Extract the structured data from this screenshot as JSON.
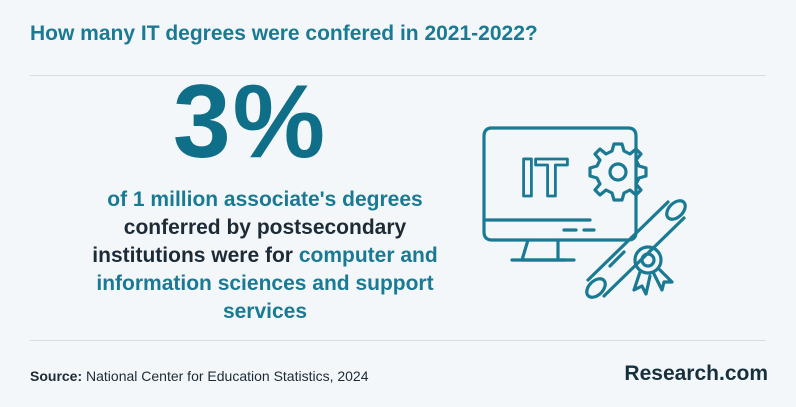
{
  "title": "How many IT degrees were confered in 2021-2022?",
  "stat": "3%",
  "description": {
    "part1": "of 1 million associate's degrees",
    "part2": "conferred by postsecondary institutions were for",
    "part3": "computer and information sciences and support services"
  },
  "illustration": {
    "screen_text": "IT",
    "icons": [
      "monitor-icon",
      "gear-icon",
      "diploma-icon"
    ]
  },
  "source": {
    "label": "Source:",
    "text": "National Center for Education Statistics, 2024"
  },
  "brand": "Research.com",
  "colors": {
    "accent": "#1a7a94",
    "stat": "#0f6e88",
    "text": "#1d2b36",
    "background": "#f4f7f9"
  }
}
